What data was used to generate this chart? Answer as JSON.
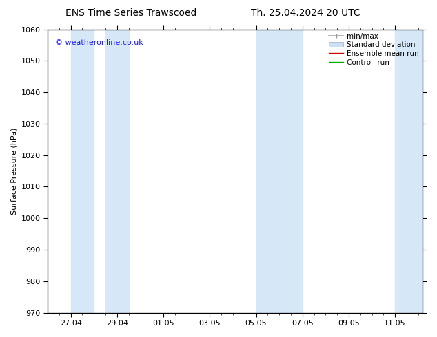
{
  "title_left": "ENS Time Series Trawscoed",
  "title_right": "Th. 25.04.2024 20 UTC",
  "ylabel": "Surface Pressure (hPa)",
  "ylim": [
    970,
    1060
  ],
  "yticks": [
    970,
    980,
    990,
    1000,
    1010,
    1020,
    1030,
    1040,
    1050,
    1060
  ],
  "xtick_labels": [
    "27.04",
    "29.04",
    "01.05",
    "03.05",
    "05.05",
    "07.05",
    "09.05",
    "11.05"
  ],
  "xtick_days": [
    1,
    3,
    5,
    7,
    9,
    11,
    13,
    15
  ],
  "copyright": "© weatheronline.co.uk",
  "bg_color": "#ffffff",
  "plot_bg_color": "#ffffff",
  "band_color": "#d6e8f7",
  "band_ranges": [
    [
      1.0,
      2.0
    ],
    [
      2.5,
      3.5
    ],
    [
      9.0,
      10.0
    ],
    [
      10.0,
      11.0
    ],
    [
      15.0,
      16.2
    ]
  ],
  "xlim": [
    0,
    16.2
  ],
  "total_days": 16,
  "title_fontsize": 10,
  "axis_fontsize": 8,
  "legend_fontsize": 7.5
}
